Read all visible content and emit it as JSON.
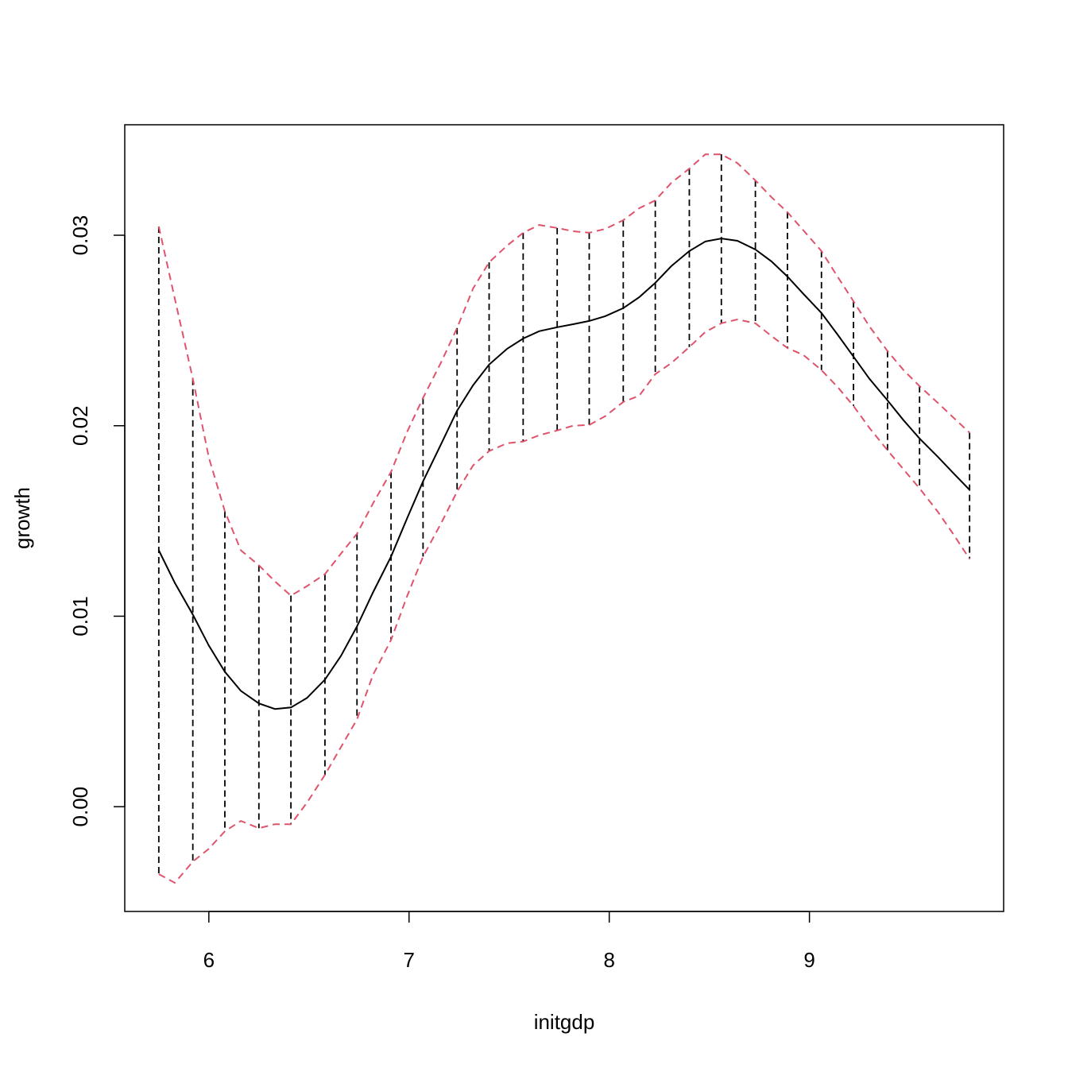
{
  "chart_data": {
    "type": "line",
    "title": "",
    "xlabel": "initgdp",
    "ylabel": "growth",
    "xlim": [
      5.58,
      9.97
    ],
    "ylim": [
      -0.0055,
      0.0358
    ],
    "grid": false,
    "legend": "none",
    "x_ticks": [
      6,
      7,
      8,
      9
    ],
    "x_tick_labels": [
      "6",
      "7",
      "8",
      "9"
    ],
    "y_ticks": [
      0,
      0.01,
      0.02,
      0.03
    ],
    "y_tick_labels": [
      "0.00",
      "0.01",
      "0.02",
      "0.03"
    ],
    "colors": {
      "fit": "#000000",
      "bands": "#DF536B",
      "segments": "#000000"
    },
    "x": [
      5.75,
      5.83,
      5.92,
      6.0,
      6.08,
      6.16,
      6.25,
      6.33,
      6.41,
      6.49,
      6.58,
      6.66,
      6.74,
      6.82,
      6.91,
      6.99,
      7.07,
      7.16,
      7.24,
      7.32,
      7.4,
      7.49,
      7.57,
      7.65,
      7.74,
      7.82,
      7.9,
      7.98,
      8.07,
      8.15,
      8.23,
      8.31,
      8.4,
      8.48,
      8.56,
      8.64,
      8.73,
      8.81,
      8.89,
      8.97,
      9.06,
      9.14,
      9.22,
      9.3,
      9.39,
      9.47,
      9.55,
      9.64,
      9.72,
      9.8
    ],
    "series": [
      {
        "style": "solid",
        "values": [
          0.01346,
          0.01175,
          0.01008,
          0.00846,
          0.00708,
          0.00608,
          0.00542,
          0.00513,
          0.00521,
          0.00571,
          0.00667,
          0.00792,
          0.00946,
          0.01125,
          0.01313,
          0.01513,
          0.01708,
          0.01904,
          0.02079,
          0.02213,
          0.02321,
          0.02404,
          0.02458,
          0.02496,
          0.02517,
          0.02533,
          0.0255,
          0.02575,
          0.02617,
          0.02675,
          0.0275,
          0.02838,
          0.02917,
          0.02967,
          0.02983,
          0.02971,
          0.02925,
          0.02863,
          0.02783,
          0.02692,
          0.02592,
          0.02479,
          0.02363,
          0.02246,
          0.02133,
          0.02029,
          0.01933,
          0.01838,
          0.0175,
          0.01663
        ]
      },
      {
        "style": "dashed-upper",
        "values": [
          0.03046,
          0.02667,
          0.02246,
          0.01833,
          0.0155,
          0.01346,
          0.01267,
          0.01183,
          0.01108,
          0.01158,
          0.01221,
          0.01329,
          0.01433,
          0.01592,
          0.01758,
          0.01967,
          0.02146,
          0.02333,
          0.02513,
          0.02721,
          0.02858,
          0.02946,
          0.03013,
          0.03054,
          0.03038,
          0.03021,
          0.03013,
          0.03033,
          0.03079,
          0.03142,
          0.03183,
          0.03275,
          0.0335,
          0.03425,
          0.03425,
          0.03379,
          0.03288,
          0.032,
          0.03121,
          0.03025,
          0.02917,
          0.02783,
          0.02654,
          0.02521,
          0.02392,
          0.02292,
          0.02208,
          0.02121,
          0.02042,
          0.01963
        ]
      },
      {
        "style": "dashed-lower",
        "values": [
          -0.00354,
          -0.004,
          -0.00288,
          -0.00221,
          -0.00129,
          -0.00075,
          -0.00113,
          -0.00092,
          -0.00092,
          0.00021,
          0.00167,
          0.00313,
          0.00458,
          0.00692,
          0.00875,
          0.01104,
          0.01313,
          0.01488,
          0.01654,
          0.01792,
          0.01867,
          0.01908,
          0.01917,
          0.0195,
          0.01975,
          0.02,
          0.02004,
          0.0205,
          0.02125,
          0.02158,
          0.02271,
          0.02329,
          0.02413,
          0.02492,
          0.02538,
          0.02558,
          0.02538,
          0.02471,
          0.02408,
          0.02371,
          0.02292,
          0.02204,
          0.02104,
          0.01988,
          0.01871,
          0.01771,
          0.01671,
          0.0155,
          0.01429,
          0.013
        ]
      }
    ],
    "segment_indices": [
      0,
      2,
      4,
      6,
      8,
      10,
      12,
      14,
      16,
      18,
      20,
      22,
      24,
      26,
      28,
      30,
      32,
      34,
      36,
      38,
      40,
      42,
      44,
      46,
      49
    ]
  }
}
